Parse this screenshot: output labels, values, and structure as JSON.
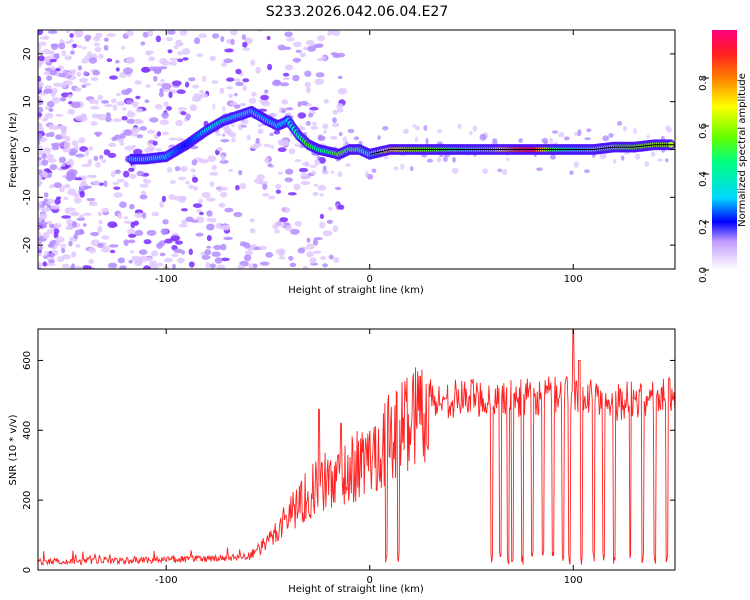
{
  "title": "S233.2026.042.06.04.E27",
  "colors": {
    "snr_line": "#ff2020",
    "axis": "#000000",
    "scatter_light": "#e0c8ff",
    "scatter_mid": "#b48cff",
    "scatter_dark": "#7b2cff"
  },
  "chart_data": [
    {
      "type": "heatmap",
      "name": "spectrogram",
      "xlabel": "Height of straight line (km)",
      "ylabel": "Frequency (Hz)",
      "xlim": [
        -163,
        150
      ],
      "ylim": [
        -25,
        25
      ],
      "xticks": [
        -100,
        0,
        100
      ],
      "yticks": [
        -20,
        -10,
        0,
        10,
        20
      ],
      "colorbar": {
        "label": "Normalized spectral amplitude",
        "range": [
          0,
          1
        ],
        "ticks": [
          "0.0",
          "0.2",
          "0.4",
          "0.6",
          "0.8"
        ]
      },
      "ridge": {
        "height_km": [
          -117,
          -110,
          -100,
          -90,
          -80,
          -72,
          -65,
          -58,
          -50,
          -45,
          -40,
          -35,
          -30,
          -25,
          -20,
          -15,
          -10,
          -5,
          0,
          10,
          20,
          30,
          40,
          50,
          60,
          70,
          80,
          90,
          100,
          110,
          120,
          130,
          140,
          148
        ],
        "freq_hz": [
          -2,
          -2,
          -1.5,
          1,
          4,
          6,
          7,
          8,
          6,
          5,
          6,
          3,
          1,
          0,
          -0.5,
          -1,
          0,
          0,
          -1,
          0,
          0,
          0,
          0,
          0,
          0,
          0,
          0,
          0,
          0,
          0,
          0.5,
          0.5,
          1,
          1
        ],
        "amplitude": [
          0.3,
          0.35,
          0.3,
          0.2,
          0.3,
          0.35,
          0.35,
          0.3,
          0.3,
          0.3,
          0.3,
          0.4,
          0.55,
          0.4,
          0.45,
          0.55,
          0.5,
          0.5,
          0.35,
          0.75,
          0.6,
          0.55,
          0.5,
          0.45,
          0.55,
          0.8,
          0.95,
          0.5,
          0.4,
          0.5,
          0.55,
          0.55,
          0.6,
          0.6
        ]
      }
    },
    {
      "type": "line",
      "name": "snr",
      "xlabel": "Height of straight line (km)",
      "ylabel": "SNR (10 * v/v)",
      "xlim": [
        -163,
        150
      ],
      "ylim": [
        0,
        690
      ],
      "xticks": [
        -100,
        0,
        100
      ],
      "yticks": [
        0,
        200,
        400,
        600
      ],
      "series": [
        {
          "name": "SNR",
          "height_km": [
            -163,
            -140,
            -120,
            -100,
            -80,
            -70,
            -60,
            -55,
            -50,
            -45,
            -40,
            -35,
            -30,
            -25,
            -20,
            -15,
            -10,
            -5,
            0,
            5,
            10,
            15,
            20,
            25,
            30,
            40,
            50,
            60,
            70,
            80,
            90,
            100,
            110,
            120,
            130,
            140,
            150
          ],
          "snr": [
            25,
            25,
            28,
            30,
            32,
            33,
            40,
            55,
            80,
            120,
            160,
            190,
            220,
            240,
            255,
            270,
            285,
            300,
            320,
            350,
            380,
            410,
            440,
            460,
            480,
            490,
            495,
            490,
            490,
            495,
            500,
            500,
            490,
            480,
            490,
            490,
            500
          ]
        }
      ],
      "dropouts_km": [
        8,
        14,
        60,
        64,
        68,
        70,
        75,
        80,
        85,
        90,
        95,
        98,
        104,
        110,
        115,
        120,
        128,
        134,
        140,
        146
      ],
      "spikes": {
        "height_km": [
          -25,
          -14,
          100,
          103
        ],
        "snr": [
          460,
          420,
          690,
          600
        ]
      }
    }
  ]
}
